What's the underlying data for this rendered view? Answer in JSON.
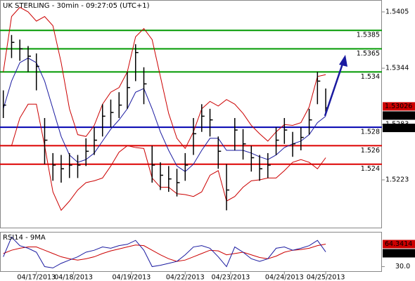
{
  "chart_data": {
    "type": "ohlc",
    "title": "UK STERLING - 30min - 09:27:05 (UTC+1)",
    "xlim": [
      -0.4,
      45.8
    ],
    "ylim": [
      1.51705,
      1.54179
    ],
    "yticks": [
      1.5405,
      1.5344,
      1.5283,
      1.5223
    ],
    "xticks": [
      {
        "value": 4,
        "label": "04/17/2013"
      },
      {
        "value": 8.5,
        "label": "04/18/2013"
      },
      {
        "value": 15.5,
        "label": "04/19/2013"
      },
      {
        "value": 22,
        "label": "04/22/2013"
      },
      {
        "value": 27.5,
        "label": "04/23/2013"
      },
      {
        "value": 34,
        "label": "04/24/2013"
      },
      {
        "value": 39,
        "label": "04/25/2013"
      }
    ],
    "bar_color": "#000000",
    "band_color": "#cc0000",
    "ma_color": "#1a1aa0",
    "high": [
      1.532,
      1.538,
      1.5375,
      1.5368,
      1.536,
      1.529,
      1.5252,
      1.525,
      1.5252,
      1.525,
      1.5268,
      1.528,
      1.5305,
      1.531,
      1.5318,
      1.534,
      1.537,
      1.5345,
      1.526,
      1.5242,
      1.5238,
      1.5235,
      1.5252,
      1.529,
      1.5305,
      1.53,
      1.527,
      1.524,
      1.529,
      1.5278,
      1.526,
      1.525,
      1.5252,
      1.528,
      1.529,
      1.5275,
      1.528,
      1.53,
      1.534,
      1.5322
    ],
    "low": [
      1.529,
      1.5355,
      1.5352,
      1.534,
      1.532,
      1.524,
      1.5222,
      1.522,
      1.5225,
      1.5225,
      1.5238,
      1.525,
      1.527,
      1.528,
      1.529,
      1.53,
      1.533,
      1.5305,
      1.522,
      1.5212,
      1.521,
      1.5205,
      1.5222,
      1.525,
      1.5275,
      1.527,
      1.5235,
      1.519,
      1.5255,
      1.5245,
      1.5232,
      1.5222,
      1.5225,
      1.525,
      1.5262,
      1.5248,
      1.5255,
      1.5272,
      1.5305,
      1.5295
    ],
    "close": [
      1.5304,
      1.5372,
      1.5365,
      1.5357,
      1.5346,
      1.5266,
      1.5239,
      1.5235,
      1.5239,
      1.5239,
      1.5254,
      1.5266,
      1.5292,
      1.5296,
      1.5304,
      1.5323,
      1.5361,
      1.5327,
      1.5239,
      1.5228,
      1.5224,
      1.522,
      1.5239,
      1.5273,
      1.5292,
      1.5288,
      1.5254,
      1.5212,
      1.5277,
      1.5262,
      1.5247,
      1.5235,
      1.5239,
      1.5266,
      1.5277,
      1.5262,
      1.5269,
      1.5288,
      1.533,
      1.5301
    ],
    "bollinger_upper": [
      1.534,
      1.54,
      1.541,
      1.5405,
      1.5395,
      1.54,
      1.539,
      1.535,
      1.53,
      1.5272,
      1.527,
      1.5282,
      1.5305,
      1.5318,
      1.5323,
      1.534,
      1.5378,
      1.5387,
      1.5375,
      1.5335,
      1.5295,
      1.5268,
      1.5257,
      1.5275,
      1.53,
      1.5308,
      1.5303,
      1.531,
      1.5305,
      1.5295,
      1.5282,
      1.5273,
      1.5265,
      1.5275,
      1.5283,
      1.5282,
      1.5285,
      1.5302,
      1.5335,
      1.5337
    ],
    "bollinger_lower": [
      1.526,
      1.526,
      1.529,
      1.5305,
      1.5305,
      1.526,
      1.521,
      1.519,
      1.52,
      1.5212,
      1.522,
      1.5222,
      1.5225,
      1.5238,
      1.5253,
      1.526,
      1.5258,
      1.5257,
      1.5225,
      1.5215,
      1.5215,
      1.5208,
      1.5207,
      1.5205,
      1.521,
      1.5228,
      1.5233,
      1.52,
      1.5205,
      1.5215,
      1.5222,
      1.5223,
      1.5225,
      1.5225,
      1.5233,
      1.5242,
      1.5245,
      1.5242,
      1.5235,
      1.5247
    ],
    "ma": [
      1.53,
      1.533,
      1.535,
      1.5355,
      1.535,
      1.533,
      1.53,
      1.527,
      1.525,
      1.5242,
      1.5245,
      1.5252,
      1.5265,
      1.5278,
      1.5288,
      1.53,
      1.5318,
      1.5322,
      1.53,
      1.5275,
      1.5255,
      1.5238,
      1.5232,
      1.524,
      1.5255,
      1.5268,
      1.5268,
      1.5255,
      1.5255,
      1.5255,
      1.5252,
      1.5248,
      1.5245,
      1.525,
      1.5258,
      1.5262,
      1.5265,
      1.5272,
      1.5285,
      1.5292
    ],
    "levels": [
      {
        "value": 1.5385,
        "color": "#009900"
      },
      {
        "value": 1.5365,
        "color": "#009900"
      },
      {
        "value": 1.534,
        "color": "#009900"
      },
      {
        "value": 1.528,
        "color": "#0000b0"
      },
      {
        "value": 1.526,
        "color": "#dd0000"
      },
      {
        "value": 1.524,
        "color": "#dd0000"
      }
    ],
    "markers": [
      {
        "value": 1.53026,
        "color": "#cc0000"
      },
      {
        "value": 1.5301,
        "color": "#000000"
      },
      {
        "value": 1.52793,
        "color": "#000000"
      }
    ],
    "indicator": {
      "title": "RSI14 - 9MA",
      "ylim": [
        22,
        82
      ],
      "yticks": [
        {
          "value": 30,
          "label": "30.0"
        }
      ],
      "rsi_color": "#1a1aa0",
      "ma_color": "#cc0000",
      "rsi": [
        45,
        75,
        62,
        58,
        52,
        30,
        28,
        35,
        40,
        45,
        52,
        55,
        60,
        58,
        62,
        64,
        70,
        55,
        30,
        32,
        35,
        38,
        48,
        60,
        62,
        58,
        45,
        30,
        60,
        52,
        42,
        38,
        42,
        58,
        60,
        55,
        58,
        62,
        70,
        52.4719
      ],
      "rsi_ma": [
        50,
        55,
        58,
        60,
        60,
        55,
        50,
        45,
        42,
        40,
        42,
        45,
        50,
        54,
        57,
        60,
        63,
        62,
        55,
        48,
        42,
        38,
        40,
        45,
        50,
        55,
        54,
        48,
        50,
        52,
        48,
        44,
        42,
        46,
        52,
        55,
        56,
        58,
        62,
        64.3414
      ],
      "markers": [
        {
          "value": 64.3414,
          "color": "#cc0000"
        },
        {
          "value": 52.4719,
          "color": "#000000"
        }
      ]
    }
  }
}
